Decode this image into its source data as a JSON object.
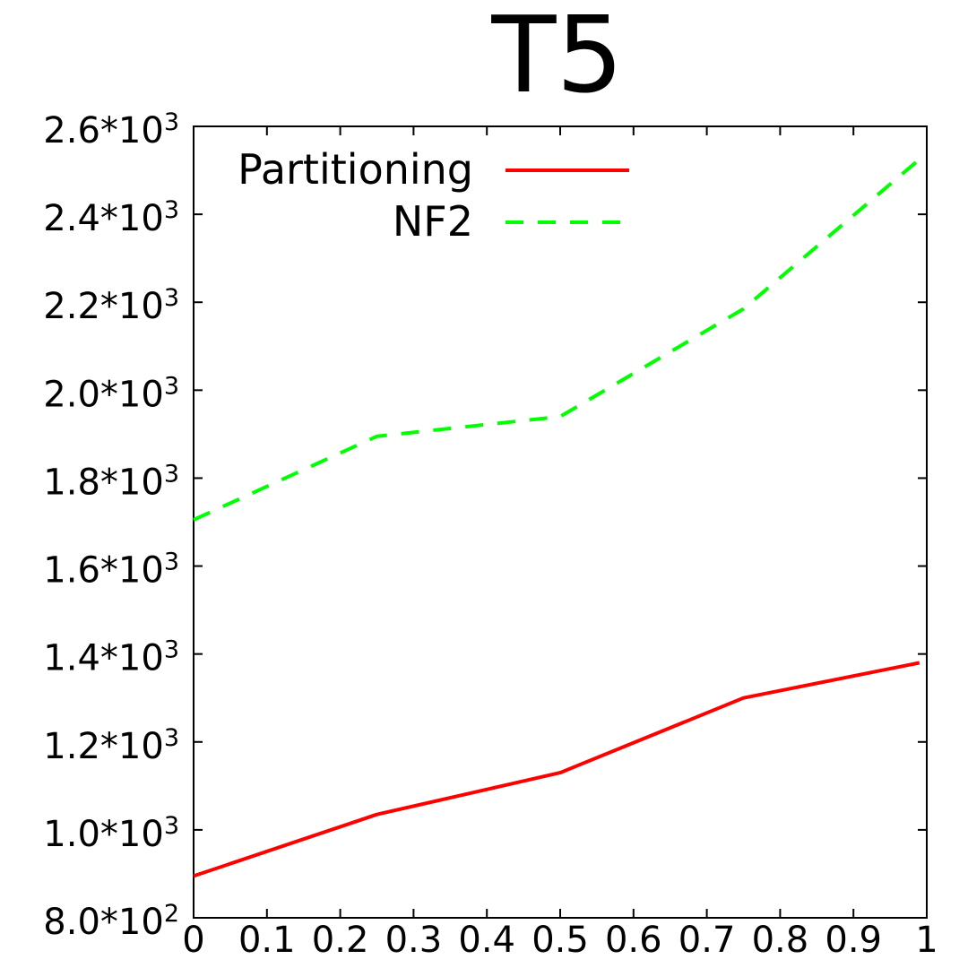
{
  "chart_data": {
    "type": "line",
    "title": "T5",
    "xlabel": "",
    "ylabel": "",
    "xlim": [
      0,
      1
    ],
    "ylim": [
      800,
      2600
    ],
    "x_ticks": [
      "0",
      "0.1",
      "0.2",
      "0.3",
      "0.4",
      "0.5",
      "0.6",
      "0.7",
      "0.8",
      "0.9",
      "1"
    ],
    "y_ticks": [
      {
        "value": 800,
        "mantissa": "8.0*10",
        "exp": "2"
      },
      {
        "value": 1000,
        "mantissa": "1.0*10",
        "exp": "3"
      },
      {
        "value": 1200,
        "mantissa": "1.2*10",
        "exp": "3"
      },
      {
        "value": 1400,
        "mantissa": "1.4*10",
        "exp": "3"
      },
      {
        "value": 1600,
        "mantissa": "1.6*10",
        "exp": "3"
      },
      {
        "value": 1800,
        "mantissa": "1.8*10",
        "exp": "3"
      },
      {
        "value": 2000,
        "mantissa": "2.0*10",
        "exp": "3"
      },
      {
        "value": 2200,
        "mantissa": "2.2*10",
        "exp": "3"
      },
      {
        "value": 2400,
        "mantissa": "2.4*10",
        "exp": "3"
      },
      {
        "value": 2600,
        "mantissa": "2.6*10",
        "exp": "3"
      }
    ],
    "grid": false,
    "legend_position": "top-right",
    "series": [
      {
        "name": "Partitioning",
        "color": "#ff0000",
        "dash": "solid",
        "x": [
          0,
          0.25,
          0.5,
          0.75,
          0.99
        ],
        "values": [
          895,
          1035,
          1130,
          1300,
          1380
        ]
      },
      {
        "name": "NF2",
        "color": "#00ff00",
        "dash": "dashed",
        "x": [
          0,
          0.25,
          0.5,
          0.75,
          0.99
        ],
        "values": [
          1705,
          1895,
          1940,
          2185,
          2525
        ]
      }
    ]
  }
}
